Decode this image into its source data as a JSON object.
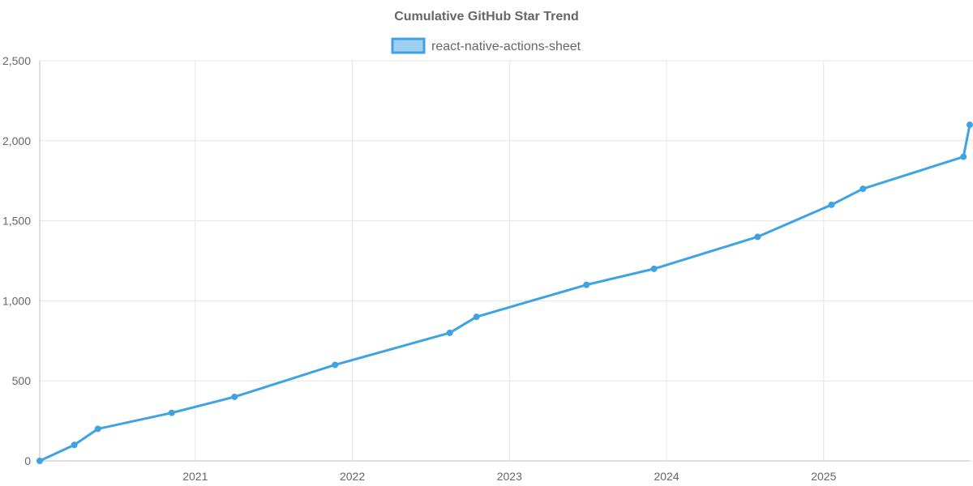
{
  "chart_data": {
    "type": "line",
    "title": "Cumulative GitHub Star Trend",
    "xlabel": "",
    "ylabel": "",
    "x_ticks": [
      "2021",
      "2022",
      "2023",
      "2024",
      "2025"
    ],
    "y_ticks": [
      "0",
      "500",
      "1,000",
      "1,500",
      "2,000",
      "2,500"
    ],
    "ylim": [
      0,
      2500
    ],
    "xlim": [
      2020.01,
      2025.93
    ],
    "grid": true,
    "legend_position": "top-center",
    "series": [
      {
        "name": "react-native-actions-sheet",
        "color": "#3fa2e3",
        "fill_color": "#9fd0f1",
        "x": [
          2020.01,
          2020.23,
          2020.38,
          2020.85,
          2021.25,
          2021.89,
          2022.62,
          2022.79,
          2023.49,
          2023.92,
          2024.58,
          2025.05,
          2025.25,
          2025.89,
          2025.93
        ],
        "values": [
          0,
          100,
          200,
          300,
          400,
          600,
          800,
          900,
          1100,
          1200,
          1400,
          1600,
          1700,
          1900,
          2100
        ]
      }
    ]
  }
}
